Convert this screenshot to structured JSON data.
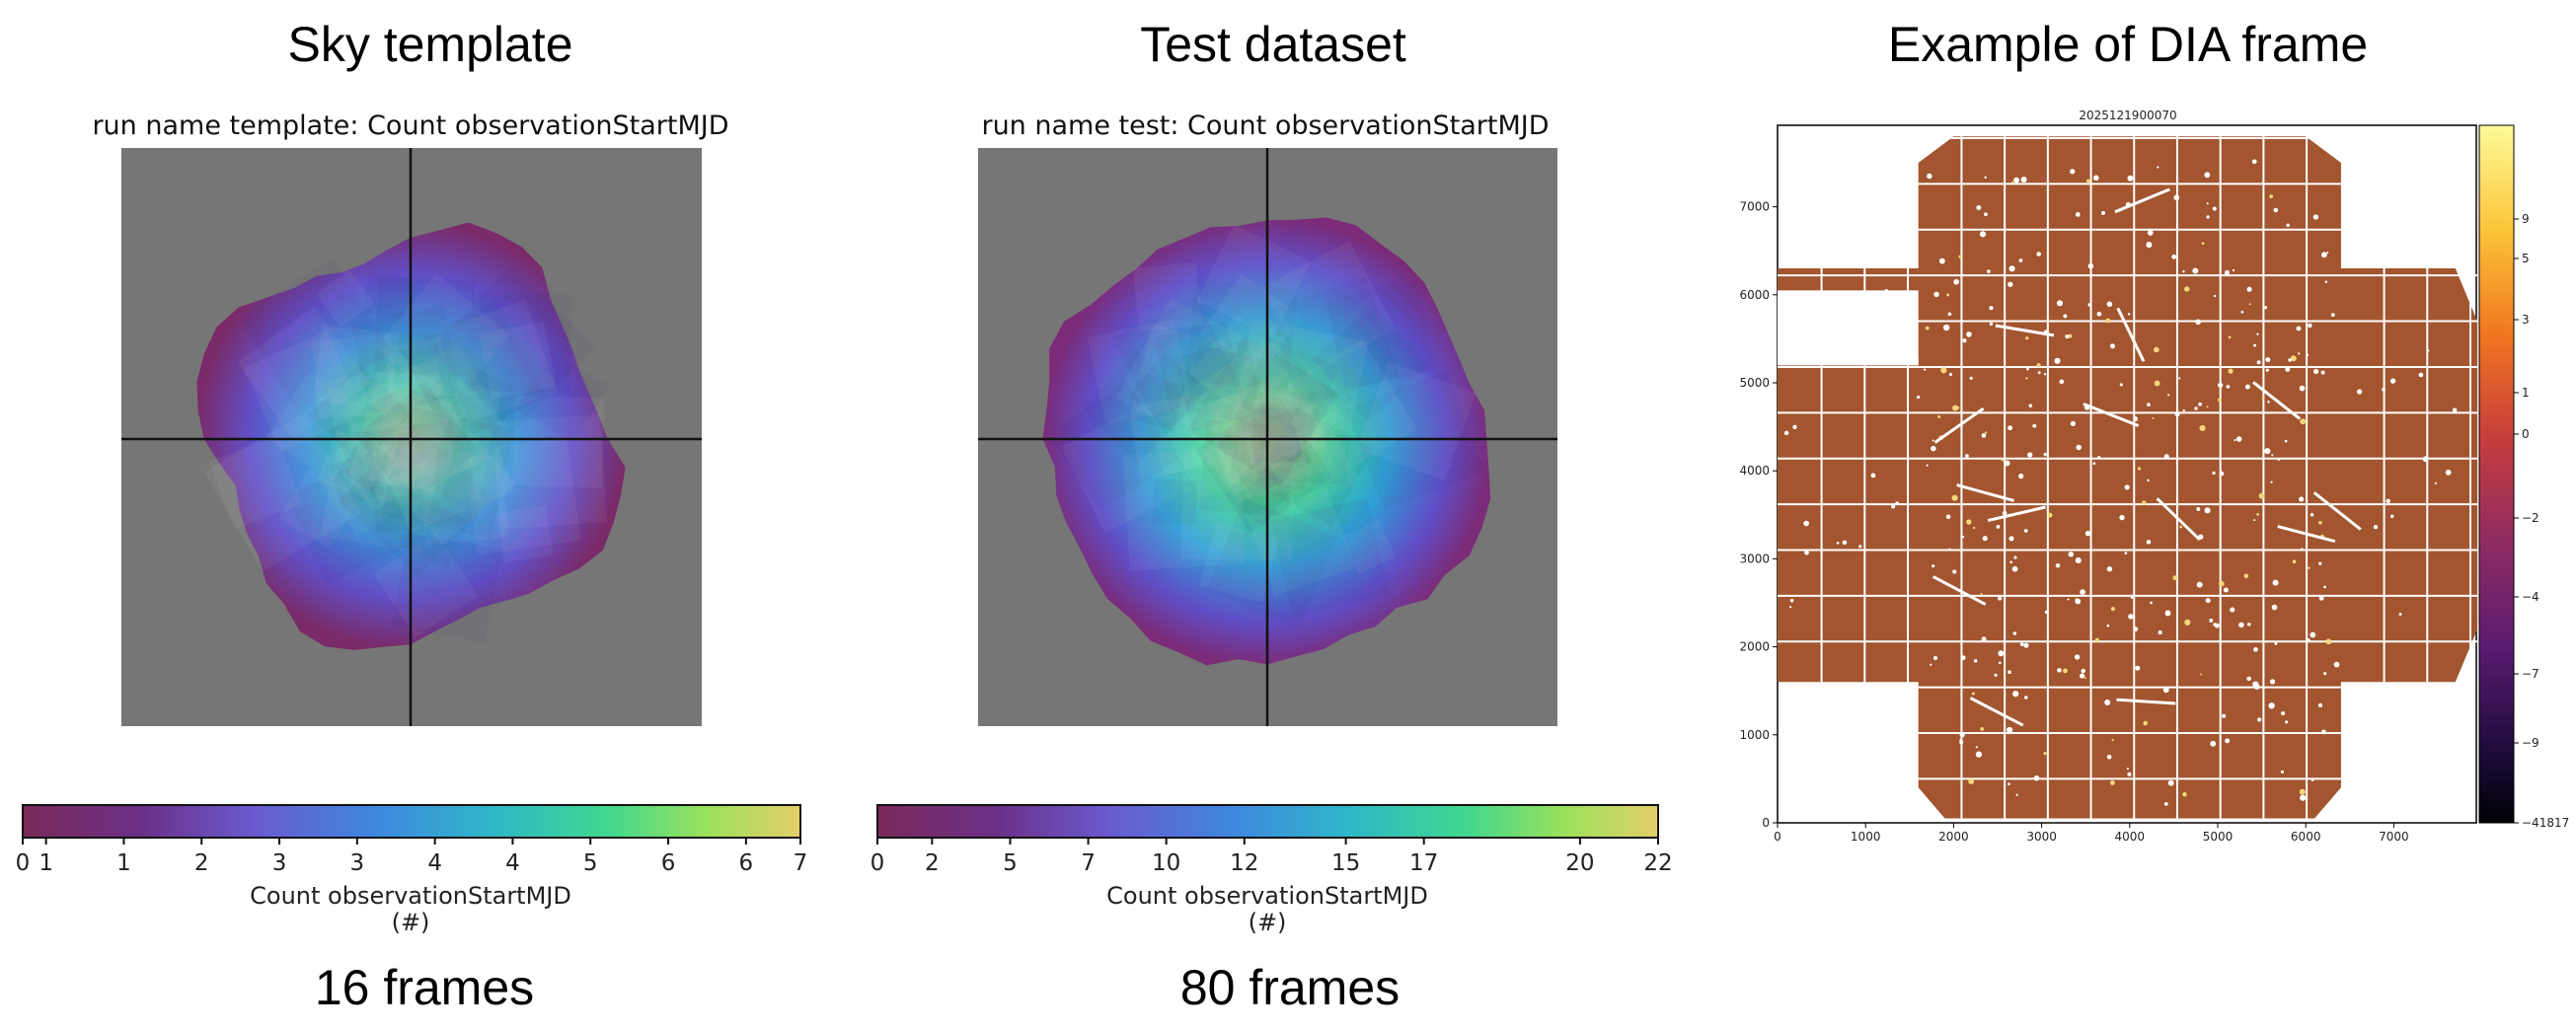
{
  "panels": [
    {
      "heading": "Sky template",
      "plot_title": "run name template: Count observationStartMJD",
      "colorbar_ticks": [
        "0",
        "1",
        "1",
        "2",
        "3",
        "3",
        "4",
        "4",
        "5",
        "6",
        "6",
        "7"
      ],
      "colorbar_label": "Count observationStartMJD",
      "colorbar_unit": "(#)",
      "footer": "16 frames"
    },
    {
      "heading": "Test dataset",
      "plot_title": "run name test: Count observationStartMJD",
      "colorbar_ticks": [
        "0",
        "2",
        "5",
        "7",
        "10",
        "12",
        "15",
        "17",
        "20",
        "22"
      ],
      "colorbar_label": "Count observationStartMJD",
      "colorbar_unit": "(#)",
      "footer": "80 frames"
    },
    {
      "heading": "Example of DIA frame",
      "plot_title": "2025121900070",
      "x_ticks": [
        "0",
        "1000",
        "2000",
        "3000",
        "4000",
        "5000",
        "6000",
        "7000"
      ],
      "y_ticks": [
        "0",
        "1000",
        "2000",
        "3000",
        "4000",
        "5000",
        "6000",
        "7000"
      ],
      "colorbar_ticks": [
        "9",
        "5",
        "3",
        "1",
        "0",
        "−2",
        "−4",
        "−7",
        "−9",
        "−41817"
      ]
    }
  ]
}
